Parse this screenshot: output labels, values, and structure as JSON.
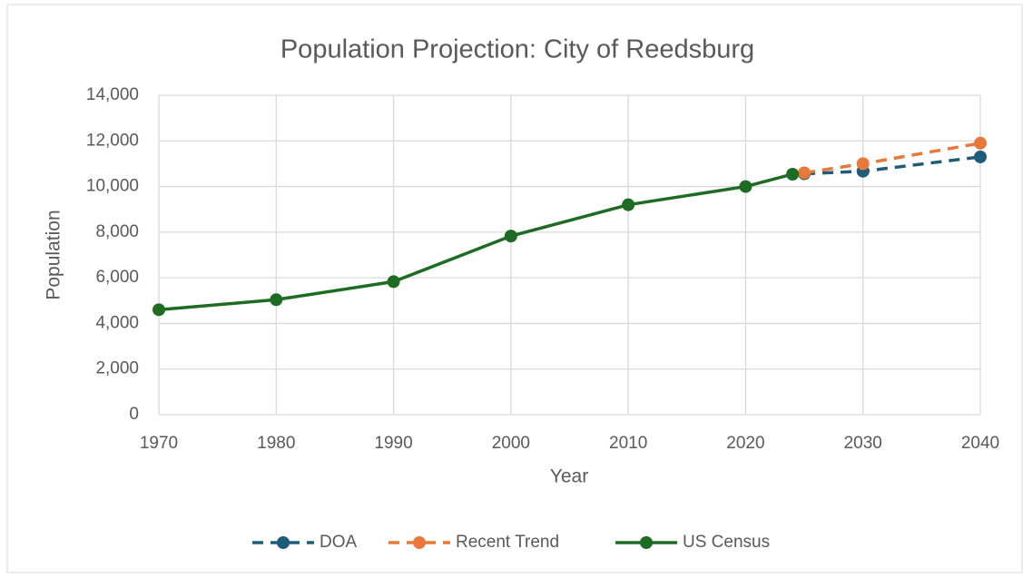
{
  "chart_data": {
    "type": "line",
    "title": "Population Projection: City of Reedsburg",
    "x_label": "Year",
    "y_label": "Population",
    "xlim": [
      1970,
      2040
    ],
    "xticks": [
      1970,
      1980,
      1990,
      2000,
      2010,
      2020,
      2030,
      2040
    ],
    "ylim": [
      0,
      14000
    ],
    "yticks": [
      0,
      {
        "value": 2000,
        "label": "2,000"
      },
      {
        "value": 4000,
        "label": "4,000"
      },
      {
        "value": 6000,
        "label": "6,000"
      },
      {
        "value": 8000,
        "label": "8,000"
      },
      {
        "value": 10000,
        "label": "10,000"
      },
      {
        "value": 12000,
        "label": "12,000"
      },
      {
        "value": 14000,
        "label": "14,000"
      }
    ],
    "grid": true,
    "legend": "bottom",
    "series": [
      {
        "name": "DOA",
        "color": "#1f5c7a",
        "style": "dashed",
        "x": [
          2025,
          2030,
          2040
        ],
        "values": [
          10560,
          10670,
          11300
        ]
      },
      {
        "name": "Recent Trend",
        "color": "#e8793a",
        "style": "dashed",
        "x": [
          2025,
          2030,
          2040
        ],
        "values": [
          10600,
          11000,
          11900
        ]
      },
      {
        "name": "US Census",
        "color": "#1e6b24",
        "style": "solid",
        "x": [
          1970,
          1980,
          1990,
          2000,
          2010,
          2020,
          2024
        ],
        "values": [
          4600,
          5040,
          5830,
          7830,
          9200,
          10000,
          10540
        ]
      }
    ]
  }
}
